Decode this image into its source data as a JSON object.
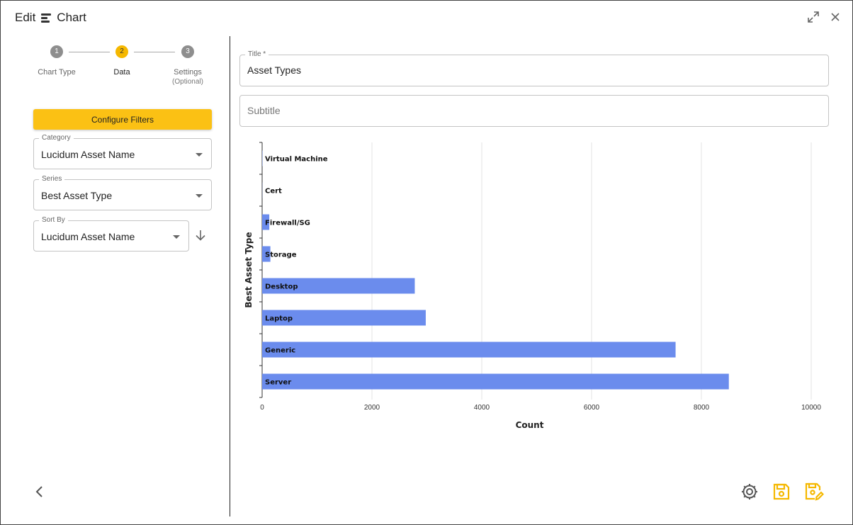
{
  "header": {
    "prefix": "Edit",
    "title": "Chart"
  },
  "stepper": {
    "steps": [
      {
        "number": "1",
        "label": "Chart Type",
        "sub": ""
      },
      {
        "number": "2",
        "label": "Data",
        "sub": ""
      },
      {
        "number": "3",
        "label": "Settings",
        "sub": "(Optional)"
      }
    ],
    "active_step": 2
  },
  "sidebar": {
    "configure_filters": "Configure Filters",
    "category": {
      "label": "Category",
      "value": "Lucidum Asset Name"
    },
    "series": {
      "label": "Series",
      "value": "Best Asset Type"
    },
    "sort_by": {
      "label": "Sort By",
      "value": "Lucidum Asset Name"
    }
  },
  "form": {
    "title": {
      "label": "Title *",
      "value": "Asset Types"
    },
    "subtitle": {
      "placeholder": "Subtitle"
    }
  },
  "colors": {
    "accent": "#fbc114",
    "bar": "#6b8ced",
    "step_inactive": "#8e8e8e"
  },
  "icons": [
    "expand-icon",
    "close-icon",
    "arrow-down-icon",
    "chevron-left-icon",
    "gear-icon",
    "save-icon",
    "save-as-icon"
  ],
  "chart_data": {
    "type": "bar",
    "orientation": "horizontal",
    "categories": [
      "Virtual Machine",
      "Cert",
      "Firewall/SG",
      "Storage",
      "Desktop",
      "Laptop",
      "Generic",
      "Server"
    ],
    "values": [
      5,
      2,
      130,
      150,
      2780,
      2980,
      7530,
      8500
    ],
    "xlabel": "Count",
    "ylabel": "Best Asset Type",
    "xlim": [
      0,
      10000
    ],
    "xticks": [
      "0",
      "2000",
      "4000",
      "6000",
      "8000",
      "10000"
    ],
    "grid": true
  }
}
